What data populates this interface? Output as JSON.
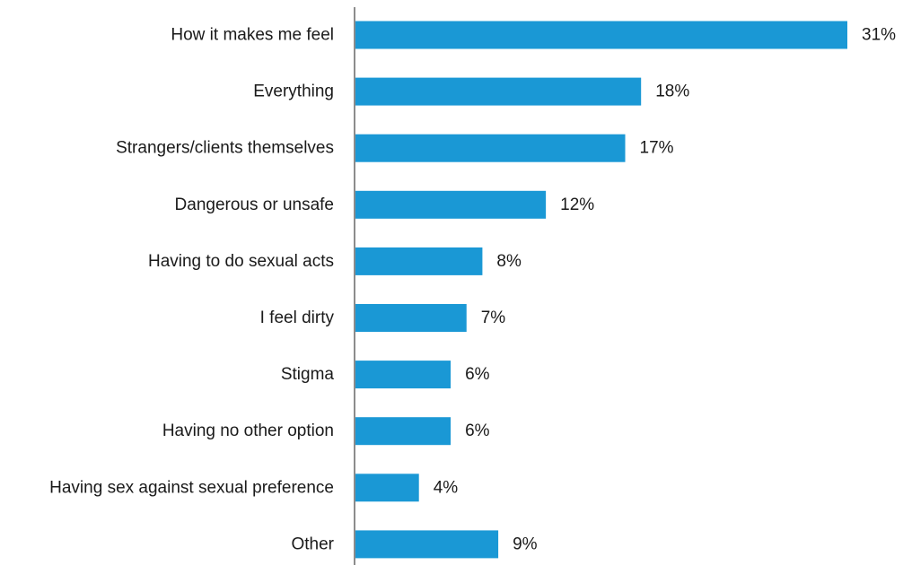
{
  "chart_data": {
    "type": "bar",
    "orientation": "horizontal",
    "categories": [
      "How it makes me feel",
      "Everything",
      "Strangers/clients themselves",
      "Dangerous or unsafe",
      "Having to do sexual acts",
      "I feel dirty",
      "Stigma",
      "Having no other option",
      "Having sex against sexual preference",
      "Other"
    ],
    "values": [
      31,
      18,
      17,
      12,
      8,
      7,
      6,
      6,
      4,
      9
    ],
    "value_labels": [
      "31%",
      "18%",
      "17%",
      "12%",
      "8%",
      "7%",
      "6%",
      "6%",
      "4%",
      "9%"
    ],
    "title": "",
    "xlabel": "",
    "ylabel": "",
    "xlim": [
      0,
      31
    ],
    "grid": false,
    "legend": "none",
    "colors": {
      "bar": "#1a98d5",
      "axis": "#8c8c8c",
      "text": "#1a1a1a"
    }
  }
}
